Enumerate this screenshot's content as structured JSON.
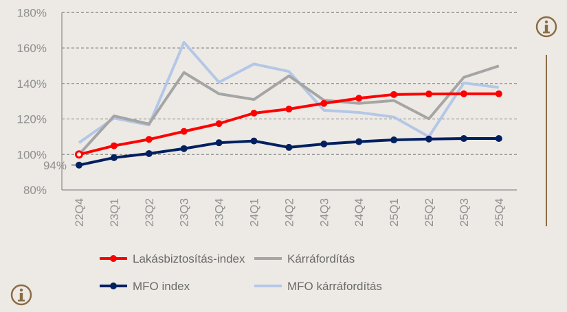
{
  "chart_data": {
    "type": "line",
    "categories": [
      "22Q4",
      "23Q1",
      "23Q2",
      "23Q3",
      "23Q4",
      "24Q1",
      "24Q2",
      "24Q3",
      "24Q4",
      "25Q1",
      "25Q2",
      "25Q3",
      "25Q4"
    ],
    "ylim": [
      80,
      180
    ],
    "yticks": [
      80,
      100,
      120,
      140,
      160,
      180
    ],
    "ytick_labels": [
      "80%",
      "100%",
      "120%",
      "140%",
      "160%",
      "180%"
    ],
    "grid": true,
    "legend_position": "bottom",
    "annotations": [
      {
        "text": "94%",
        "series": "MFO index",
        "category": "22Q4"
      }
    ],
    "series": [
      {
        "name": "Lakásbiztosítás-index",
        "color": "#FF0000",
        "markers": true,
        "values": [
          100,
          104.9,
          108.5,
          113,
          117.4,
          123.3,
          125.6,
          128.8,
          131.7,
          133.8,
          134.1,
          134.2,
          134.2
        ]
      },
      {
        "name": "Kárráfordítás",
        "color": "#A5A5A5",
        "markers": false,
        "values": [
          100,
          121.7,
          117.2,
          146.2,
          134.2,
          131,
          144.3,
          130.6,
          128.8,
          130.4,
          120.1,
          143.5,
          149.9
        ]
      },
      {
        "name": "MFO index",
        "color": "#002060",
        "markers": true,
        "values": [
          94,
          98.2,
          100.5,
          103.3,
          106.6,
          107.6,
          104,
          105.9,
          107.2,
          108.2,
          108.7,
          109,
          109
        ]
      },
      {
        "name": "MFO kárráfordítás",
        "color": "#B4C7E7",
        "markers": false,
        "values": [
          106.6,
          120.5,
          116.6,
          163.2,
          140.7,
          151,
          146.8,
          124.9,
          123.7,
          121.1,
          110,
          140.3,
          137.8
        ]
      }
    ]
  },
  "icons": {
    "top_right": "info-icon",
    "bottom_left": "info-icon",
    "color": "#8B6B45"
  }
}
